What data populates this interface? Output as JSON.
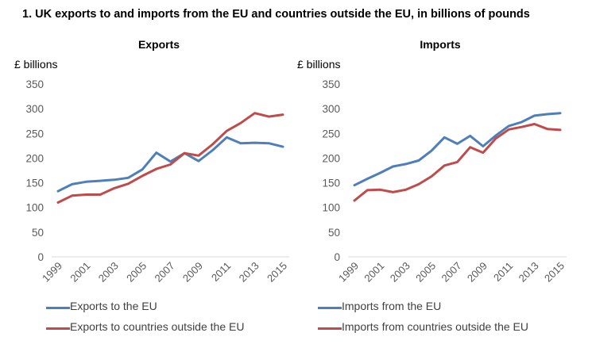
{
  "figure": {
    "title": "1.  UK exports to and imports from the EU and countries outside the EU, in billions of pounds"
  },
  "colors": {
    "eu": "#4e7fb8",
    "non_eu": "#bf4b4b",
    "axis": "#d9d9d9",
    "tick_text": "#595959"
  },
  "chart_data": [
    {
      "type": "line",
      "title": "Exports",
      "ylabel": "£ billions",
      "ylim": [
        0,
        350
      ],
      "yticks": [
        0,
        50,
        100,
        150,
        200,
        250,
        300,
        350
      ],
      "x": [
        1999,
        2000,
        2001,
        2002,
        2003,
        2004,
        2005,
        2006,
        2007,
        2008,
        2009,
        2010,
        2011,
        2012,
        2013,
        2014,
        2015
      ],
      "xtick_labels": [
        "1999",
        "2001",
        "2003",
        "2005",
        "2007",
        "2009",
        "2011",
        "2013",
        "2015"
      ],
      "grid": false,
      "legend_position": "bottom",
      "series": [
        {
          "name": "Exports to the EU",
          "values": [
            133,
            147,
            152,
            154,
            156,
            160,
            177,
            211,
            193,
            210,
            194,
            216,
            242,
            230,
            231,
            230,
            223
          ]
        },
        {
          "name": "Exports to countries outside the EU",
          "values": [
            110,
            124,
            126,
            126,
            139,
            148,
            164,
            178,
            187,
            210,
            205,
            228,
            255,
            271,
            291,
            284,
            288
          ]
        }
      ]
    },
    {
      "type": "line",
      "title": "Imports",
      "ylabel": "£ billions",
      "ylim": [
        0,
        350
      ],
      "yticks": [
        0,
        50,
        100,
        150,
        200,
        250,
        300,
        350
      ],
      "x": [
        1999,
        2000,
        2001,
        2002,
        2003,
        2004,
        2005,
        2006,
        2007,
        2008,
        2009,
        2010,
        2011,
        2012,
        2013,
        2014,
        2015
      ],
      "xtick_labels": [
        "1999",
        "2001",
        "2003",
        "2005",
        "2007",
        "2009",
        "2011",
        "2013",
        "2015"
      ],
      "grid": false,
      "legend_position": "bottom",
      "series": [
        {
          "name": "Imports from the EU",
          "values": [
            145,
            158,
            170,
            183,
            188,
            195,
            215,
            242,
            229,
            245,
            224,
            246,
            265,
            273,
            286,
            289,
            291
          ]
        },
        {
          "name": "Imports from countries outside the EU",
          "values": [
            114,
            135,
            136,
            131,
            136,
            147,
            163,
            185,
            192,
            222,
            211,
            240,
            258,
            263,
            269,
            259,
            257
          ]
        }
      ]
    }
  ]
}
